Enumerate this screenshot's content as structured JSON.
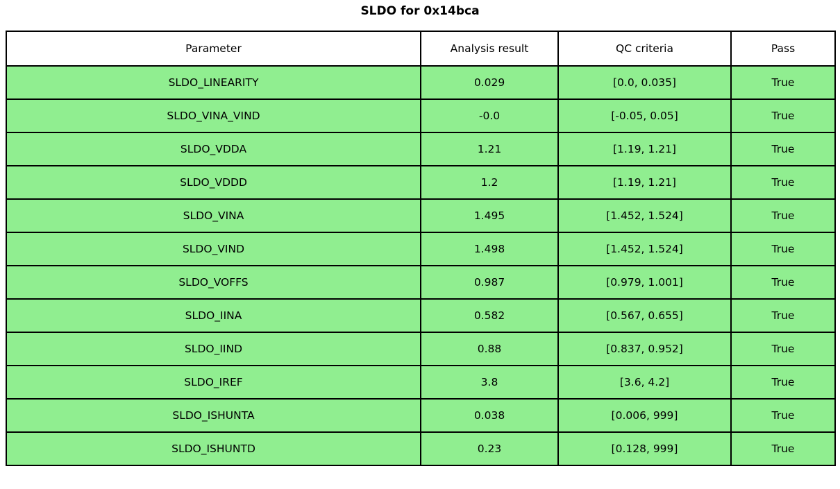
{
  "title": "SLDO for 0x14bca",
  "colors": {
    "pass_row_bg": "#90ee90",
    "header_bg": "#ffffff",
    "border": "#000000",
    "text": "#000000"
  },
  "table": {
    "headers": [
      "Parameter",
      "Analysis result",
      "QC criteria",
      "Pass"
    ],
    "rows": [
      {
        "parameter": "SLDO_LINEARITY",
        "result": "0.029",
        "criteria": "[0.0, 0.035]",
        "pass": "True"
      },
      {
        "parameter": "SLDO_VINA_VIND",
        "result": "-0.0",
        "criteria": "[-0.05, 0.05]",
        "pass": "True"
      },
      {
        "parameter": "SLDO_VDDA",
        "result": "1.21",
        "criteria": "[1.19, 1.21]",
        "pass": "True"
      },
      {
        "parameter": "SLDO_VDDD",
        "result": "1.2",
        "criteria": "[1.19, 1.21]",
        "pass": "True"
      },
      {
        "parameter": "SLDO_VINA",
        "result": "1.495",
        "criteria": "[1.452, 1.524]",
        "pass": "True"
      },
      {
        "parameter": "SLDO_VIND",
        "result": "1.498",
        "criteria": "[1.452, 1.524]",
        "pass": "True"
      },
      {
        "parameter": "SLDO_VOFFS",
        "result": "0.987",
        "criteria": "[0.979, 1.001]",
        "pass": "True"
      },
      {
        "parameter": "SLDO_IINA",
        "result": "0.582",
        "criteria": "[0.567, 0.655]",
        "pass": "True"
      },
      {
        "parameter": "SLDO_IIND",
        "result": "0.88",
        "criteria": "[0.837, 0.952]",
        "pass": "True"
      },
      {
        "parameter": "SLDO_IREF",
        "result": "3.8",
        "criteria": "[3.6, 4.2]",
        "pass": "True"
      },
      {
        "parameter": "SLDO_ISHUNTA",
        "result": "0.038",
        "criteria": "[0.006, 999]",
        "pass": "True"
      },
      {
        "parameter": "SLDO_ISHUNTD",
        "result": "0.23",
        "criteria": "[0.128, 999]",
        "pass": "True"
      }
    ]
  },
  "chart_data": {
    "type": "table",
    "title": "SLDO for 0x14bca",
    "columns": [
      "Parameter",
      "Analysis result",
      "QC criteria",
      "Pass"
    ],
    "rows": [
      [
        "SLDO_LINEARITY",
        0.029,
        "[0.0, 0.035]",
        "True"
      ],
      [
        "SLDO_VINA_VIND",
        -0.0,
        "[-0.05, 0.05]",
        "True"
      ],
      [
        "SLDO_VDDA",
        1.21,
        "[1.19, 1.21]",
        "True"
      ],
      [
        "SLDO_VDDD",
        1.2,
        "[1.19, 1.21]",
        "True"
      ],
      [
        "SLDO_VINA",
        1.495,
        "[1.452, 1.524]",
        "True"
      ],
      [
        "SLDO_VIND",
        1.498,
        "[1.452, 1.524]",
        "True"
      ],
      [
        "SLDO_VOFFS",
        0.987,
        "[0.979, 1.001]",
        "True"
      ],
      [
        "SLDO_IINA",
        0.582,
        "[0.567, 0.655]",
        "True"
      ],
      [
        "SLDO_IIND",
        0.88,
        "[0.837, 0.952]",
        "True"
      ],
      [
        "SLDO_IREF",
        3.8,
        "[3.6, 4.2]",
        "True"
      ],
      [
        "SLDO_ISHUNTA",
        0.038,
        "[0.006, 999]",
        "True"
      ],
      [
        "SLDO_ISHUNTD",
        0.23,
        "[0.128, 999]",
        "True"
      ]
    ],
    "layout_hints": {
      "all_rows_highlighted": true,
      "row_highlight_meaning": "QC pass",
      "header_background": "#ffffff",
      "grid": true
    }
  }
}
